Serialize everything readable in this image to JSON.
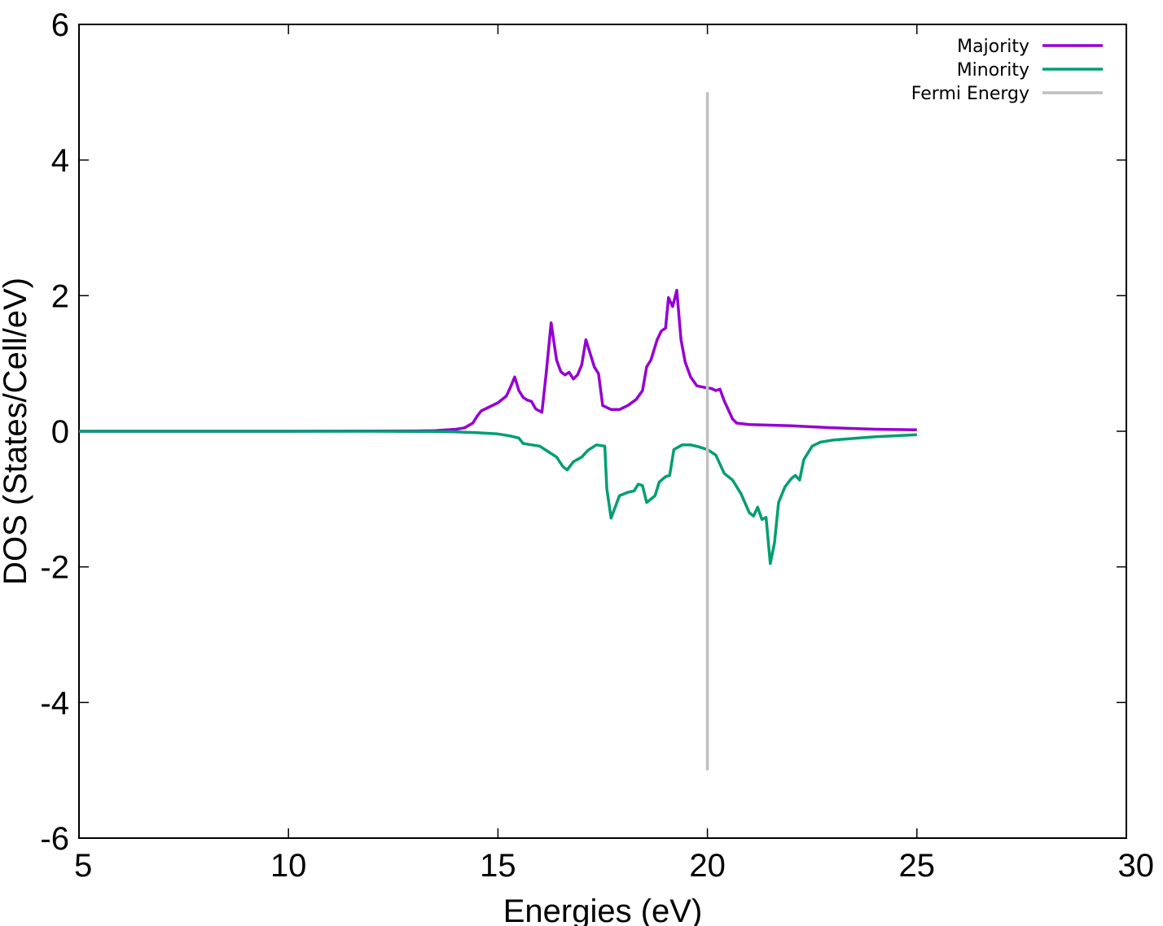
{
  "chart_data": {
    "type": "line",
    "xlabel": "Energies (eV)",
    "ylabel": "DOS  (States/Cell/eV)",
    "xlim": [
      5,
      30
    ],
    "ylim": [
      -6,
      6
    ],
    "xticks": [
      "5",
      "10",
      "15",
      "20",
      "25",
      "30"
    ],
    "yticks": [
      "6",
      "4",
      "2",
      "0",
      "-2",
      "-4",
      "-6"
    ],
    "xtick_values": [
      5,
      10,
      15,
      20,
      25,
      30
    ],
    "ytick_values": [
      6,
      4,
      2,
      0,
      -2,
      -4,
      -6
    ],
    "legend_position": "top-right",
    "series": [
      {
        "name": "Majority",
        "color": "#9400d3",
        "points": [
          [
            5,
            0
          ],
          [
            10,
            0
          ],
          [
            13,
            0.005
          ],
          [
            13.5,
            0.01
          ],
          [
            14,
            0.03
          ],
          [
            14.2,
            0.05
          ],
          [
            14.4,
            0.12
          ],
          [
            14.5,
            0.22
          ],
          [
            14.6,
            0.3
          ],
          [
            14.8,
            0.36
          ],
          [
            15,
            0.42
          ],
          [
            15.2,
            0.52
          ],
          [
            15.3,
            0.65
          ],
          [
            15.4,
            0.8
          ],
          [
            15.5,
            0.6
          ],
          [
            15.6,
            0.5
          ],
          [
            15.7,
            0.46
          ],
          [
            15.8,
            0.44
          ],
          [
            15.9,
            0.33
          ],
          [
            16.05,
            0.28
          ],
          [
            16.15,
            0.85
          ],
          [
            16.27,
            1.6
          ],
          [
            16.4,
            1.05
          ],
          [
            16.5,
            0.88
          ],
          [
            16.6,
            0.83
          ],
          [
            16.7,
            0.87
          ],
          [
            16.8,
            0.77
          ],
          [
            16.9,
            0.83
          ],
          [
            17,
            0.98
          ],
          [
            17.1,
            1.35
          ],
          [
            17.3,
            0.95
          ],
          [
            17.4,
            0.85
          ],
          [
            17.5,
            0.38
          ],
          [
            17.7,
            0.32
          ],
          [
            17.9,
            0.32
          ],
          [
            18.1,
            0.38
          ],
          [
            18.3,
            0.47
          ],
          [
            18.45,
            0.6
          ],
          [
            18.55,
            0.95
          ],
          [
            18.65,
            1.05
          ],
          [
            18.8,
            1.35
          ],
          [
            18.9,
            1.48
          ],
          [
            19,
            1.52
          ],
          [
            19.07,
            1.97
          ],
          [
            19.17,
            1.84
          ],
          [
            19.27,
            2.08
          ],
          [
            19.37,
            1.35
          ],
          [
            19.47,
            1.02
          ],
          [
            19.6,
            0.8
          ],
          [
            19.75,
            0.67
          ],
          [
            19.9,
            0.65
          ],
          [
            20.1,
            0.63
          ],
          [
            20.2,
            0.6
          ],
          [
            20.3,
            0.62
          ],
          [
            20.4,
            0.45
          ],
          [
            20.6,
            0.18
          ],
          [
            20.7,
            0.12
          ],
          [
            21,
            0.1
          ],
          [
            22,
            0.08
          ],
          [
            23,
            0.05
          ],
          [
            24,
            0.03
          ],
          [
            25,
            0.02
          ]
        ]
      },
      {
        "name": "Minority",
        "color": "#009e73",
        "points": [
          [
            5,
            0
          ],
          [
            10,
            0
          ],
          [
            12,
            0
          ],
          [
            13.5,
            -0.005
          ],
          [
            14,
            -0.01
          ],
          [
            14.5,
            -0.02
          ],
          [
            15,
            -0.04
          ],
          [
            15.3,
            -0.07
          ],
          [
            15.5,
            -0.1
          ],
          [
            15.6,
            -0.18
          ],
          [
            15.8,
            -0.2
          ],
          [
            16,
            -0.22
          ],
          [
            16.2,
            -0.3
          ],
          [
            16.4,
            -0.38
          ],
          [
            16.55,
            -0.52
          ],
          [
            16.65,
            -0.57
          ],
          [
            16.8,
            -0.45
          ],
          [
            17,
            -0.38
          ],
          [
            17.15,
            -0.28
          ],
          [
            17.35,
            -0.2
          ],
          [
            17.55,
            -0.22
          ],
          [
            17.6,
            -0.85
          ],
          [
            17.7,
            -1.28
          ],
          [
            17.9,
            -0.95
          ],
          [
            18.1,
            -0.9
          ],
          [
            18.25,
            -0.88
          ],
          [
            18.35,
            -0.78
          ],
          [
            18.45,
            -0.8
          ],
          [
            18.55,
            -1.05
          ],
          [
            18.75,
            -0.95
          ],
          [
            18.85,
            -0.75
          ],
          [
            19,
            -0.67
          ],
          [
            19.1,
            -0.65
          ],
          [
            19.2,
            -0.27
          ],
          [
            19.4,
            -0.2
          ],
          [
            19.6,
            -0.2
          ],
          [
            19.8,
            -0.23
          ],
          [
            20,
            -0.27
          ],
          [
            20.2,
            -0.35
          ],
          [
            20.4,
            -0.62
          ],
          [
            20.6,
            -0.72
          ],
          [
            20.8,
            -0.92
          ],
          [
            21,
            -1.2
          ],
          [
            21.1,
            -1.25
          ],
          [
            21.2,
            -1.12
          ],
          [
            21.3,
            -1.3
          ],
          [
            21.4,
            -1.27
          ],
          [
            21.5,
            -1.95
          ],
          [
            21.6,
            -1.65
          ],
          [
            21.7,
            -1.05
          ],
          [
            21.85,
            -0.82
          ],
          [
            22,
            -0.7
          ],
          [
            22.1,
            -0.65
          ],
          [
            22.2,
            -0.72
          ],
          [
            22.3,
            -0.42
          ],
          [
            22.5,
            -0.22
          ],
          [
            22.7,
            -0.16
          ],
          [
            23,
            -0.13
          ],
          [
            24,
            -0.08
          ],
          [
            25,
            -0.05
          ]
        ]
      },
      {
        "name": "Fermi Energy",
        "color": "#c0c0c0",
        "points": [
          [
            20,
            -5
          ],
          [
            20,
            5
          ]
        ]
      }
    ]
  }
}
